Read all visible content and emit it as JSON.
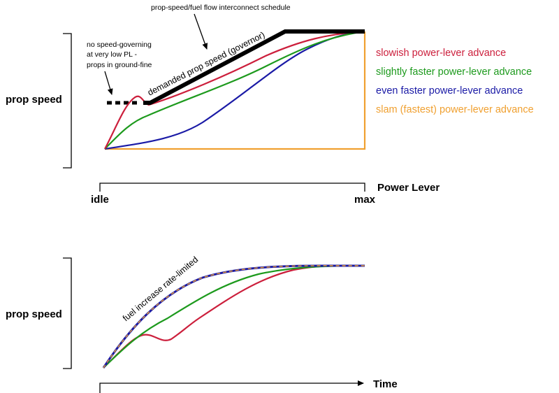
{
  "top_diagram": {
    "title": "prop-speed/fuel flow interconnect schedule",
    "y_label": "prop speed",
    "x_axis_label": "Power Lever",
    "x_min_label": "idle",
    "x_max_label": "max",
    "governor_label": "demanded prop speed (governor)",
    "note_lines": [
      "no speed-governing",
      "at very low PL -",
      "props in ground-fine"
    ]
  },
  "legend": [
    {
      "label": "slowish power-lever advance",
      "color": "#cc1f3c"
    },
    {
      "label": "slightly faster power-lever advance",
      "color": "#1d9a1d"
    },
    {
      "label": "even faster power-lever advance",
      "color": "#1a1aa6"
    },
    {
      "label": "slam (fastest)  power-lever advance",
      "color": "#f0a030"
    }
  ],
  "bottom_diagram": {
    "y_label": "prop speed",
    "x_axis_label": "Time",
    "annotation": "fuel increase rate-limited"
  },
  "colors": {
    "governor": "#000000",
    "slowish": "#cc1f3c",
    "faster": "#1d9a1d",
    "even_faster": "#1a1aa6",
    "slam": "#f0a030"
  }
}
